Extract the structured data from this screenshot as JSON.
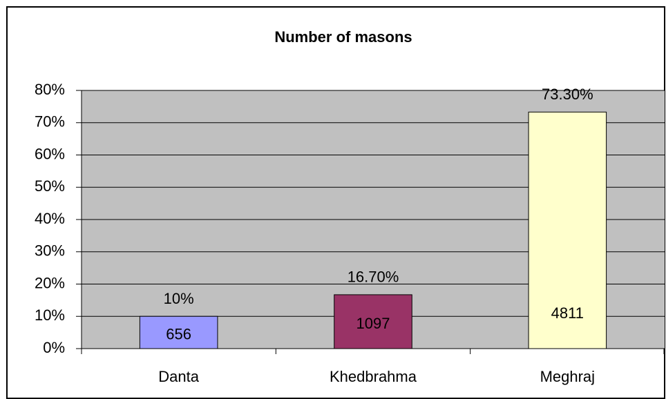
{
  "chart_data": {
    "type": "bar",
    "title": "Number of masons",
    "categories": [
      "Danta",
      "Khedbrahma",
      "Meghraj"
    ],
    "values": [
      10,
      16.7,
      73.3
    ],
    "value_labels": [
      "10%",
      "16.70%",
      "73.30%"
    ],
    "counts": [
      656,
      1097,
      4811
    ],
    "colors": [
      "#9999ff",
      "#993366",
      "#ffffcc"
    ],
    "ylim": [
      0,
      80
    ],
    "yticks": [
      {
        "value": 0,
        "label": "0%"
      },
      {
        "value": 10,
        "label": "10%"
      },
      {
        "value": 20,
        "label": "20%"
      },
      {
        "value": 30,
        "label": "30%"
      },
      {
        "value": 40,
        "label": "40%"
      },
      {
        "value": 50,
        "label": "50%"
      },
      {
        "value": 60,
        "label": "60%"
      },
      {
        "value": 70,
        "label": "70%"
      },
      {
        "value": 80,
        "label": "80%"
      }
    ],
    "grid": true
  }
}
